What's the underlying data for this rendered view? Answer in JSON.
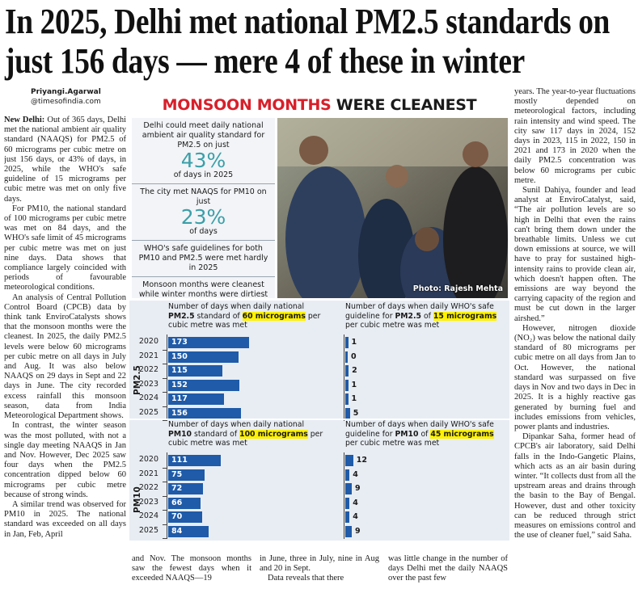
{
  "headline": "In 2025, Delhi met national PM2.5 standards on just 156 days — mere 4 of these in winter",
  "byline": {
    "name": "Priyangi.Agarwal",
    "handle": "@timesofindia.com"
  },
  "graphic": {
    "banner": [
      "MONSOON MONTHS",
      "WERE CLEANEST"
    ],
    "facts": [
      {
        "text": "Delhi could meet daily national ambient air quality standard for PM2.5 on just",
        "stat": "43%",
        "unit": "of days in 2025"
      },
      {
        "text": "The city met NAAQS for PM10 on just",
        "stat": "23%",
        "unit": "of days"
      },
      {
        "text": "WHO's safe guidelines for both PM10 and PM2.5 were met hardly in 2025"
      },
      {
        "text": "Monsoon months were cleanest while winter months were dirtiest"
      }
    ],
    "photo_credit": "Photo: Rajesh Mehta"
  },
  "chart_data": [
    {
      "type": "bar",
      "group_label": "PM2.5",
      "title_parts": [
        "Number of days when daily national ",
        "PM2.5",
        " standard of ",
        "60 micrograms",
        " per cubic metre was met"
      ],
      "categories": [
        "2020",
        "2021",
        "2022",
        "2023",
        "2024",
        "2025"
      ],
      "values": [
        173,
        150,
        115,
        152,
        117,
        156
      ],
      "color": "#1f5ba8"
    },
    {
      "type": "bar",
      "title_parts": [
        "Number of days when daily WHO's safe guideline for ",
        "PM2.5",
        " of ",
        "15 micrograms",
        " per cubic metre was met"
      ],
      "values": [
        1,
        0,
        2,
        1,
        1,
        5
      ],
      "color": "#1f5ba8"
    },
    {
      "type": "bar",
      "group_label": "PM10",
      "title_parts": [
        "Number of days when daily national ",
        "PM10",
        " standard of ",
        "100 micrograms",
        " per cubic metre was met"
      ],
      "categories": [
        "2020",
        "2021",
        "2022",
        "2023",
        "2024",
        "2025"
      ],
      "values": [
        111,
        75,
        72,
        66,
        70,
        84
      ],
      "color": "#1f5ba8"
    },
    {
      "type": "bar",
      "title_parts": [
        "Number of days when daily WHO's safe guideline for ",
        "PM10",
        " of ",
        "45 micrograms",
        " per cubic metre was met"
      ],
      "values": [
        12,
        4,
        9,
        4,
        4,
        9
      ],
      "color": "#1f5ba8"
    }
  ],
  "article": {
    "dateline": "New Delhi:",
    "columns": [
      [
        "Out of 365 days, Delhi met the national ambient air quality standard (NAAQS) for PM2.5 of 60 micrograms per cubic metre on just 156 days, or 43% of days, in 2025, while the WHO's safe guideline of 15 micrograms per cubic metre was met on only five days.",
        "For PM10, the national standard of 100 micrograms per cubic metre was met on 84 days, and the WHO's safe limit of 45 micrograms per cubic metre was met on just nine days. Data shows that compliance largely coincided with periods of favourable meteorological conditions.",
        "An analysis of Central Pollution Control Board (CPCB) data by think tank EnviroCatalysts shows that the monsoon months were the cleanest. In 2025, the daily PM2.5 levels were below 60 micrograms per cubic metre on all days in July and Aug. It was also below NAAQS on 29 days in Sept and 22 days in June. The city recorded excess rainfall this monsoon season, data from India Meteorological Department shows.",
        "In contrast, the winter season was the most polluted, with not a single day meeting NAAQS in Jan and Nov. However, Dec 2025 saw four days when the PM2.5 concentration dipped below 60 micrograms per cubic metre because of strong winds.",
        "A similar trend was observed for PM10 in 2025. The national standard was exceeded on all days in Jan, Feb, April"
      ],
      [
        "and Nov. The monsoon months saw the fewest days when it exceeded NAAQS—19"
      ],
      [
        "in June, three in July, nine in Aug and 20 in Sept.",
        "Data reveals that there"
      ],
      [
        "was little change in the number of days Delhi met the daily NAAQS over the past few"
      ],
      [
        "years. The year-to-year fluctuations mostly depended on meteorological factors, including rain intensity and wind speed. The city saw 117 days in 2024, 152 days in 2023, 115 in 2022, 150 in 2021 and 173 in 2020 when the daily PM2.5 concentration was below 60 micrograms per cubic metre.",
        "Sunil Dahiya, founder and lead analyst at EnviroCatalyst, said, “The air pollution levels are so high in Delhi that even the rains can't bring them down under the breathable limits. Unless we cut down emissions at source, we will have to pray for sustained high-intensity rains to provide clean air, which doesn't happen often. The emissions are way beyond the carrying capacity of the region and must be cut down in the larger airshed.”",
        "However, nitrogen dioxide (NO₂) was below the national daily standard of 80 micrograms per cubic metre on all days from Jan to Oct. However, the national standard was surpassed on five days in Nov and two days in Dec in 2025. It is a highly reactive gas generated by burning fuel and includes emissions from vehicles, power plants and industries.",
        "Dipankar Saha, former head of CPCB's air laboratory, said Delhi falls in the Indo-Gangetic Plains, which acts as an air basin during winter. “It collects dust from all the upstream areas and drains through the basin to the Bay of Bengal. However, dust and other toxicity can be reduced through strict measures on emissions control and the use of cleaner fuel,” said Saha."
      ]
    ]
  }
}
